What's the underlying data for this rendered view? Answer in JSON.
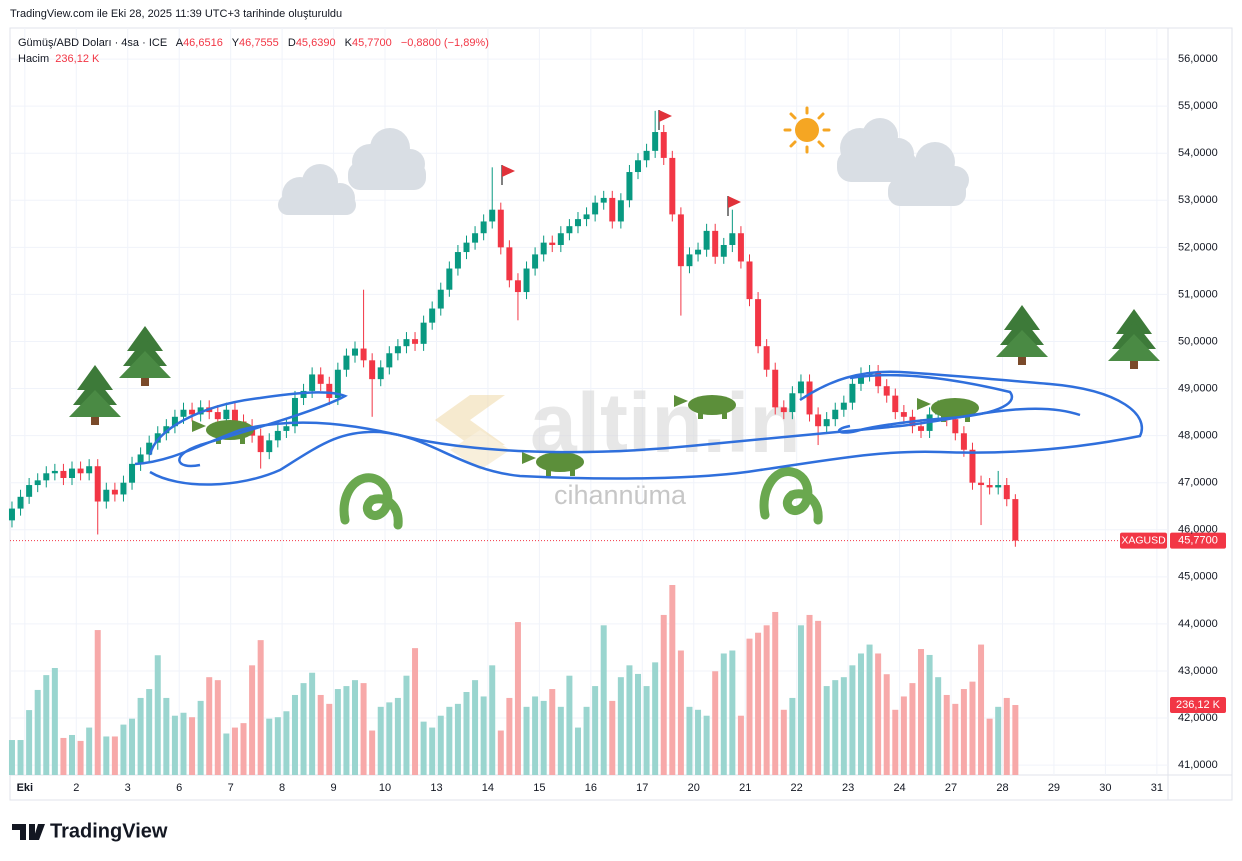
{
  "header": "TradingView.com ile Eki 28, 2025 11:39 UTC+3 tarihinde oluşturuldu",
  "footer_brand": "TradingView",
  "watermark": {
    "brand": "altin.in",
    "sub": "cihannüma"
  },
  "chart_data": {
    "type": "candlestick",
    "legend": {
      "symbol": "Gümüş/ABD Doları · 4sa · ICE",
      "fields": [
        {
          "key": "A",
          "label": "46,6516"
        },
        {
          "key": "Y",
          "label": "46,7555"
        },
        {
          "key": "D",
          "label": "45,6390"
        },
        {
          "key": "K",
          "label": "45,7700"
        }
      ],
      "change": "−0,8800 (−1,89%)",
      "volume_key": "Hacim",
      "volume_label": "236,12 K"
    },
    "up_color": "#089981",
    "down_color": "#f23645",
    "volume_up_color": "#9ad5cf",
    "volume_down_color": "#f7a9a9",
    "open": [
      46.2,
      46.45,
      46.7,
      46.95,
      47.05,
      47.2,
      47.25,
      47.1,
      47.3,
      47.2,
      47.35,
      46.6,
      46.85,
      46.75,
      47.0,
      47.4,
      47.6,
      47.85,
      48.05,
      48.2,
      48.4,
      48.55,
      48.45,
      48.6,
      48.5,
      48.35,
      48.55,
      48.3,
      48.2,
      48.0,
      47.65,
      47.9,
      48.1,
      48.2,
      48.8,
      48.95,
      49.3,
      49.1,
      48.8,
      49.4,
      49.7,
      49.85,
      49.6,
      49.2,
      49.45,
      49.75,
      49.9,
      50.05,
      49.95,
      50.4,
      50.7,
      51.1,
      51.55,
      51.9,
      52.1,
      52.3,
      52.55,
      52.8,
      52.0,
      51.3,
      51.05,
      51.55,
      51.85,
      52.1,
      52.05,
      52.3,
      52.45,
      52.6,
      52.7,
      52.95,
      53.05,
      52.55,
      53.0,
      53.6,
      53.85,
      54.05,
      54.45,
      53.9,
      52.7,
      51.6,
      51.85,
      51.95,
      52.35,
      51.8,
      52.05,
      52.3,
      51.7,
      50.9,
      49.9,
      49.4,
      48.6,
      48.5,
      48.9,
      49.15,
      48.45,
      48.2,
      48.35,
      48.55,
      48.7,
      49.1,
      49.3,
      49.35,
      49.05,
      48.85,
      48.5,
      48.4,
      48.2,
      48.1,
      48.45,
      48.6,
      48.35,
      48.05,
      47.7,
      47.0,
      46.95,
      46.9,
      46.95,
      46.6516
    ],
    "high": [
      46.6,
      46.85,
      47.1,
      47.2,
      47.35,
      47.4,
      47.4,
      47.45,
      47.45,
      47.5,
      47.5,
      47.0,
      47.0,
      47.15,
      47.55,
      47.75,
      48.0,
      48.2,
      48.35,
      48.55,
      48.7,
      48.7,
      48.75,
      48.75,
      48.65,
      48.7,
      48.7,
      48.45,
      48.35,
      48.15,
      48.05,
      48.25,
      48.35,
      48.95,
      49.1,
      49.45,
      49.45,
      49.25,
      49.55,
      49.85,
      50.0,
      51.1,
      49.75,
      49.6,
      49.9,
      50.05,
      50.2,
      50.2,
      50.55,
      50.85,
      51.25,
      51.7,
      52.05,
      52.25,
      52.45,
      52.7,
      53.7,
      52.95,
      52.15,
      51.45,
      51.7,
      52.0,
      52.25,
      52.25,
      52.45,
      52.6,
      52.75,
      52.85,
      53.1,
      53.2,
      53.2,
      53.15,
      53.75,
      54.0,
      54.2,
      54.9,
      54.6,
      54.05,
      52.85,
      52.0,
      52.1,
      52.5,
      52.5,
      52.2,
      52.8,
      52.45,
      51.85,
      51.05,
      50.05,
      49.55,
      48.75,
      49.05,
      49.3,
      49.3,
      48.6,
      48.5,
      48.7,
      48.85,
      49.25,
      49.45,
      49.5,
      49.5,
      49.2,
      49.0,
      48.65,
      48.55,
      48.35,
      48.6,
      48.75,
      48.75,
      48.5,
      48.2,
      47.85,
      47.15,
      47.1,
      47.25,
      47.1,
      46.7555
    ],
    "low": [
      46.05,
      46.3,
      46.55,
      46.8,
      46.9,
      47.05,
      46.95,
      46.95,
      47.05,
      47.05,
      45.9,
      46.45,
      46.6,
      46.6,
      46.85,
      47.25,
      47.45,
      47.7,
      47.9,
      48.05,
      48.25,
      48.3,
      48.3,
      48.35,
      48.2,
      48.2,
      48.15,
      48.05,
      47.85,
      47.3,
      47.5,
      47.75,
      47.95,
      48.05,
      48.65,
      48.8,
      48.95,
      48.65,
      48.65,
      49.25,
      49.55,
      49.45,
      48.4,
      49.05,
      49.3,
      49.6,
      49.75,
      49.8,
      49.8,
      50.25,
      50.55,
      50.95,
      51.4,
      51.75,
      51.95,
      52.15,
      52.4,
      51.85,
      51.15,
      50.45,
      50.9,
      51.4,
      51.7,
      51.9,
      51.9,
      52.15,
      52.3,
      52.45,
      52.55,
      52.8,
      52.4,
      52.4,
      52.85,
      53.45,
      53.7,
      53.9,
      53.75,
      52.55,
      50.55,
      51.45,
      51.7,
      51.8,
      51.65,
      51.65,
      51.9,
      51.55,
      50.75,
      49.75,
      49.25,
      48.45,
      48.35,
      48.35,
      48.75,
      48.3,
      47.8,
      48.05,
      48.2,
      48.4,
      48.55,
      48.95,
      49.15,
      48.9,
      48.7,
      48.35,
      48.25,
      48.05,
      47.95,
      47.95,
      48.3,
      48.2,
      47.9,
      47.55,
      46.85,
      46.1,
      46.75,
      46.75,
      46.5,
      45.639
    ],
    "close": [
      46.45,
      46.7,
      46.95,
      47.05,
      47.2,
      47.25,
      47.1,
      47.3,
      47.2,
      47.35,
      46.6,
      46.85,
      46.75,
      47.0,
      47.4,
      47.6,
      47.85,
      48.05,
      48.2,
      48.4,
      48.55,
      48.45,
      48.6,
      48.5,
      48.35,
      48.55,
      48.3,
      48.2,
      48.0,
      47.65,
      47.9,
      48.1,
      48.2,
      48.8,
      48.95,
      49.3,
      49.1,
      48.8,
      49.4,
      49.7,
      49.85,
      49.6,
      49.2,
      49.45,
      49.75,
      49.9,
      50.05,
      49.95,
      50.4,
      50.7,
      51.1,
      51.55,
      51.9,
      52.1,
      52.3,
      52.55,
      52.8,
      52.0,
      51.3,
      51.05,
      51.55,
      51.85,
      52.1,
      52.05,
      52.3,
      52.45,
      52.6,
      52.7,
      52.95,
      53.05,
      52.55,
      53.0,
      53.6,
      53.85,
      54.05,
      54.45,
      53.9,
      52.7,
      51.6,
      51.85,
      51.95,
      52.35,
      51.8,
      52.05,
      52.3,
      51.7,
      50.9,
      49.9,
      49.4,
      48.6,
      48.5,
      48.9,
      49.15,
      48.45,
      48.2,
      48.35,
      48.55,
      48.7,
      49.1,
      49.3,
      49.35,
      49.05,
      48.85,
      48.5,
      48.4,
      48.2,
      48.1,
      48.45,
      48.6,
      48.35,
      48.05,
      47.7,
      47.0,
      46.95,
      46.9,
      46.95,
      46.65,
      45.77
    ],
    "volume": [
      118,
      118,
      219,
      287,
      337,
      361,
      125,
      135,
      115,
      160,
      489,
      130,
      130,
      170,
      190,
      260,
      290,
      404,
      260,
      200,
      210,
      195,
      250,
      330,
      320,
      140,
      160,
      175,
      370,
      455,
      190,
      195,
      215,
      270,
      310,
      345,
      270,
      240,
      290,
      300,
      320,
      310,
      150,
      230,
      245,
      260,
      335,
      428,
      180,
      160,
      200,
      230,
      240,
      280,
      320,
      265,
      370,
      150,
      260,
      516,
      230,
      265,
      250,
      290,
      230,
      335,
      160,
      230,
      300,
      505,
      250,
      330,
      370,
      341,
      300,
      380,
      540,
      641,
      420,
      230,
      220,
      200,
      350,
      410,
      420,
      200,
      460,
      480,
      505,
      550,
      220,
      260,
      505,
      540,
      520,
      300,
      320,
      330,
      370,
      410,
      440,
      410,
      340,
      220,
      265,
      310,
      425,
      405,
      330,
      270,
      240,
      290,
      315,
      440,
      190,
      230,
      260,
      236.12
    ],
    "xlim": [
      -0.23,
      134.8
    ],
    "ylim": [
      40.79,
      56.66
    ],
    "xticks": [
      {
        "value": 1.5,
        "label": "Eki"
      },
      {
        "value": 7.5,
        "label": "2"
      },
      {
        "value": 13.5,
        "label": "3"
      },
      {
        "value": 19.5,
        "label": "6"
      },
      {
        "value": 25.5,
        "label": "7"
      },
      {
        "value": 31.5,
        "label": "8"
      },
      {
        "value": 37.5,
        "label": "9"
      },
      {
        "value": 43.5,
        "label": "10"
      },
      {
        "value": 49.5,
        "label": "13"
      },
      {
        "value": 55.5,
        "label": "14"
      },
      {
        "value": 61.5,
        "label": "15"
      },
      {
        "value": 67.5,
        "label": "16"
      },
      {
        "value": 73.5,
        "label": "17"
      },
      {
        "value": 79.5,
        "label": "20"
      },
      {
        "value": 85.5,
        "label": "21"
      },
      {
        "value": 91.5,
        "label": "22"
      },
      {
        "value": 97.5,
        "label": "23"
      },
      {
        "value": 103.5,
        "label": "24"
      },
      {
        "value": 109.5,
        "label": "27"
      },
      {
        "value": 115.5,
        "label": "28"
      },
      {
        "value": 121.5,
        "label": "29"
      },
      {
        "value": 127.5,
        "label": "30"
      },
      {
        "value": 133.5,
        "label": "31"
      }
    ],
    "yticks": [
      {
        "value": 41,
        "label": "41,0000"
      },
      {
        "value": 42,
        "label": "42,0000"
      },
      {
        "value": 43,
        "label": "43,0000"
      },
      {
        "value": 44,
        "label": "44,0000"
      },
      {
        "value": 45,
        "label": "45,0000"
      },
      {
        "value": 46,
        "label": "46,0000"
      },
      {
        "value": 47,
        "label": "47,0000"
      },
      {
        "value": 48,
        "label": "48,0000"
      },
      {
        "value": 49,
        "label": "49,0000"
      },
      {
        "value": 50,
        "label": "50,0000"
      },
      {
        "value": 51,
        "label": "51,0000"
      },
      {
        "value": 52,
        "label": "52,0000"
      },
      {
        "value": 53,
        "label": "53,0000"
      },
      {
        "value": 54,
        "label": "54,0000"
      },
      {
        "value": 55,
        "label": "55,0000"
      },
      {
        "value": 56,
        "label": "56,0000"
      }
    ],
    "grid": true,
    "last_price": {
      "value": 45.77,
      "label": "45,7700",
      "symbol": "XAGUSD"
    }
  }
}
